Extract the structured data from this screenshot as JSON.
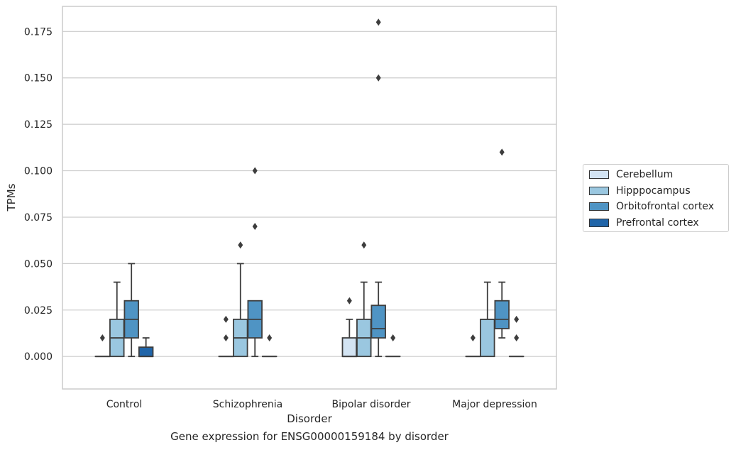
{
  "chart_data": {
    "type": "box",
    "xlabel": "Disorder",
    "ylabel": "TPMs",
    "ylim": [
      -0.0175,
      0.1885
    ],
    "yticks": [
      "0.000",
      "0.025",
      "0.050",
      "0.075",
      "0.100",
      "0.125",
      "0.150",
      "0.175"
    ],
    "ytick_values": [
      0,
      0.025,
      0.05,
      0.075,
      0.1,
      0.125,
      0.15,
      0.175
    ],
    "grid": "horizontal",
    "legend_position": "right",
    "categories": [
      "Control",
      "Schizophrenia",
      "Bipolar disorder",
      "Major depression"
    ],
    "series": [
      {
        "name": "Cerebellum",
        "color": "#d3e4f3",
        "boxes": [
          {
            "min": 0,
            "q1": 0,
            "median": 0,
            "q3": 0,
            "max": 0,
            "outliers": [
              0.01
            ]
          },
          {
            "min": 0,
            "q1": 0,
            "median": 0,
            "q3": 0,
            "max": 0,
            "outliers": [
              0.01,
              0.02
            ]
          },
          {
            "min": 0,
            "q1": 0,
            "median": 0,
            "q3": 0.01,
            "max": 0.02,
            "outliers": [
              0.03
            ]
          },
          {
            "min": 0,
            "q1": 0,
            "median": 0,
            "q3": 0,
            "max": 0,
            "outliers": [
              0.01
            ]
          }
        ]
      },
      {
        "name": "Hipppocampus",
        "color": "#9ac7e0",
        "boxes": [
          {
            "min": 0,
            "q1": 0,
            "median": 0.01,
            "q3": 0.02,
            "max": 0.04,
            "outliers": []
          },
          {
            "min": 0,
            "q1": 0,
            "median": 0.01,
            "q3": 0.02,
            "max": 0.05,
            "outliers": [
              0.06
            ]
          },
          {
            "min": 0,
            "q1": 0,
            "median": 0.01,
            "q3": 0.02,
            "max": 0.04,
            "outliers": [
              0.06
            ]
          },
          {
            "min": 0,
            "q1": 0,
            "median": 0.02,
            "q3": 0.02,
            "max": 0.04,
            "outliers": []
          }
        ]
      },
      {
        "name": "Orbitofrontal cortex",
        "color": "#4f94c4",
        "boxes": [
          {
            "min": 0,
            "q1": 0.01,
            "median": 0.02,
            "q3": 0.03,
            "max": 0.05,
            "outliers": []
          },
          {
            "min": 0,
            "q1": 0.01,
            "median": 0.02,
            "q3": 0.03,
            "max": 0.03,
            "outliers": [
              0.07,
              0.1
            ]
          },
          {
            "min": 0,
            "q1": 0.01,
            "median": 0.015,
            "q3": 0.0275,
            "max": 0.04,
            "outliers": [
              0.15,
              0.18
            ]
          },
          {
            "min": 0.01,
            "q1": 0.015,
            "median": 0.02,
            "q3": 0.03,
            "max": 0.04,
            "outliers": [
              0.11
            ]
          }
        ]
      },
      {
        "name": "Prefrontal cortex",
        "color": "#2065a9",
        "boxes": [
          {
            "min": 0,
            "q1": 0,
            "median": 0,
            "q3": 0.005,
            "max": 0.01,
            "outliers": []
          },
          {
            "min": 0,
            "q1": 0,
            "median": 0,
            "q3": 0,
            "max": 0,
            "outliers": [
              0.01
            ]
          },
          {
            "min": 0,
            "q1": 0,
            "median": 0,
            "q3": 0,
            "max": 0,
            "outliers": [
              0.01
            ]
          },
          {
            "min": 0,
            "q1": 0,
            "median": 0,
            "q3": 0,
            "max": 0,
            "outliers": [
              0.01,
              0.02
            ]
          }
        ]
      }
    ]
  },
  "caption": "Gene expression for ENSG00000159184 by disorder"
}
